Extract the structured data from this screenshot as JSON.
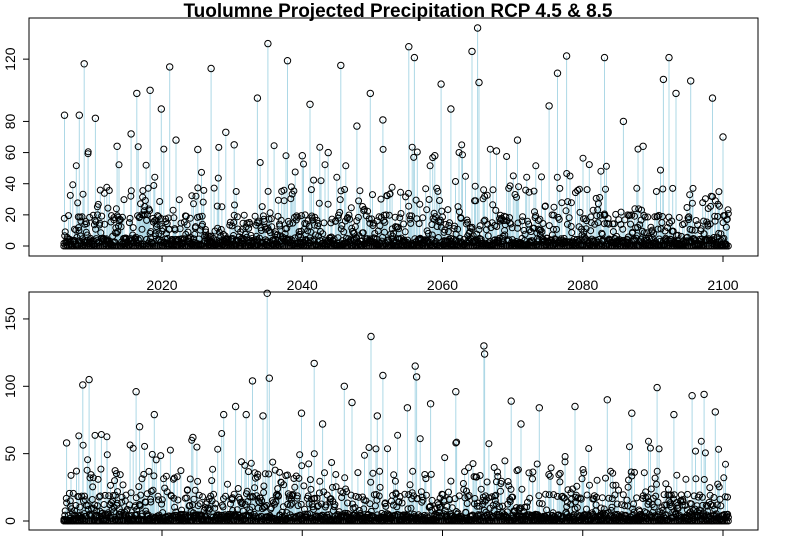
{
  "chart_data": [
    {
      "type": "scatter",
      "title": "Tuolumne Projected Precipitation RCP 4.5 & 8.5",
      "xlabel": "",
      "ylabel": "",
      "xlim": [
        2005,
        2101
      ],
      "ylim": [
        0,
        140
      ],
      "x_ticks": [
        2020,
        2040,
        2060,
        2080,
        2100
      ],
      "x_tick_labels": [
        "2020",
        "2040",
        "2060",
        "2080",
        "2100"
      ],
      "y_ticks": [
        0,
        20,
        40,
        60,
        80,
        120
      ],
      "y_tick_labels": [
        "0",
        "20",
        "40",
        "60",
        "80",
        "120"
      ],
      "stem_color": "#add8e6",
      "point_color": "#000000",
      "grid": false,
      "extremes": [
        {
          "x": 2006.1,
          "y": 84
        },
        {
          "x": 2008.2,
          "y": 84
        },
        {
          "x": 2008.9,
          "y": 117
        },
        {
          "x": 2010.5,
          "y": 82
        },
        {
          "x": 2013.6,
          "y": 64
        },
        {
          "x": 2015.6,
          "y": 72
        },
        {
          "x": 2016.4,
          "y": 98
        },
        {
          "x": 2018.3,
          "y": 100
        },
        {
          "x": 2019.9,
          "y": 88
        },
        {
          "x": 2021.1,
          "y": 115
        },
        {
          "x": 2022.0,
          "y": 68
        },
        {
          "x": 2025.1,
          "y": 62
        },
        {
          "x": 2027.0,
          "y": 114
        },
        {
          "x": 2029.1,
          "y": 73
        },
        {
          "x": 2030.3,
          "y": 65
        },
        {
          "x": 2033.6,
          "y": 95
        },
        {
          "x": 2035.1,
          "y": 130
        },
        {
          "x": 2037.9,
          "y": 119
        },
        {
          "x": 2040.0,
          "y": 58
        },
        {
          "x": 2041.1,
          "y": 91
        },
        {
          "x": 2043.7,
          "y": 60
        },
        {
          "x": 2045.5,
          "y": 116
        },
        {
          "x": 2047.8,
          "y": 77
        },
        {
          "x": 2049.7,
          "y": 98
        },
        {
          "x": 2051.5,
          "y": 81
        },
        {
          "x": 2055.2,
          "y": 128
        },
        {
          "x": 2056.0,
          "y": 121
        },
        {
          "x": 2058.9,
          "y": 58
        },
        {
          "x": 2059.8,
          "y": 104
        },
        {
          "x": 2061.2,
          "y": 88
        },
        {
          "x": 2064.2,
          "y": 125
        },
        {
          "x": 2065.0,
          "y": 140
        },
        {
          "x": 2065.2,
          "y": 105
        },
        {
          "x": 2067.7,
          "y": 61
        },
        {
          "x": 2070.7,
          "y": 68
        },
        {
          "x": 2075.2,
          "y": 90
        },
        {
          "x": 2076.4,
          "y": 111
        },
        {
          "x": 2077.7,
          "y": 122
        },
        {
          "x": 2083.1,
          "y": 121
        },
        {
          "x": 2085.8,
          "y": 80
        },
        {
          "x": 2088.6,
          "y": 64
        },
        {
          "x": 2091.5,
          "y": 107
        },
        {
          "x": 2092.3,
          "y": 121
        },
        {
          "x": 2093.3,
          "y": 98
        },
        {
          "x": 2095.4,
          "y": 106
        },
        {
          "x": 2098.5,
          "y": 95
        },
        {
          "x": 2100.0,
          "y": 70
        }
      ]
    },
    {
      "type": "scatter",
      "title": "",
      "xlabel": "",
      "ylabel": "",
      "xlim": [
        2005,
        2101
      ],
      "ylim": [
        0,
        170
      ],
      "x_ticks": [
        2020,
        2040,
        2060,
        2080,
        2100
      ],
      "x_tick_labels": [],
      "y_ticks": [
        0,
        50,
        100,
        150
      ],
      "y_tick_labels": [
        "0",
        "50",
        "100",
        "150"
      ],
      "stem_color": "#add8e6",
      "point_color": "#000000",
      "grid": false,
      "extremes": [
        {
          "x": 2006.4,
          "y": 58
        },
        {
          "x": 2008.7,
          "y": 101
        },
        {
          "x": 2009.6,
          "y": 105
        },
        {
          "x": 2016.3,
          "y": 96
        },
        {
          "x": 2016.8,
          "y": 70
        },
        {
          "x": 2018.9,
          "y": 79
        },
        {
          "x": 2024.4,
          "y": 62
        },
        {
          "x": 2028.8,
          "y": 79
        },
        {
          "x": 2030.5,
          "y": 85
        },
        {
          "x": 2032.0,
          "y": 79
        },
        {
          "x": 2032.9,
          "y": 104
        },
        {
          "x": 2034.4,
          "y": 78
        },
        {
          "x": 2035.0,
          "y": 169
        },
        {
          "x": 2035.3,
          "y": 106
        },
        {
          "x": 2039.9,
          "y": 80
        },
        {
          "x": 2041.7,
          "y": 117
        },
        {
          "x": 2042.9,
          "y": 72
        },
        {
          "x": 2046.0,
          "y": 100
        },
        {
          "x": 2047.1,
          "y": 88
        },
        {
          "x": 2049.8,
          "y": 137
        },
        {
          "x": 2050.7,
          "y": 78
        },
        {
          "x": 2051.5,
          "y": 108
        },
        {
          "x": 2055.0,
          "y": 84
        },
        {
          "x": 2056.1,
          "y": 115
        },
        {
          "x": 2056.3,
          "y": 107
        },
        {
          "x": 2058.3,
          "y": 87
        },
        {
          "x": 2061.9,
          "y": 96
        },
        {
          "x": 2065.9,
          "y": 130
        },
        {
          "x": 2066.0,
          "y": 124
        },
        {
          "x": 2069.8,
          "y": 89
        },
        {
          "x": 2071.2,
          "y": 72
        },
        {
          "x": 2073.8,
          "y": 84
        },
        {
          "x": 2078.9,
          "y": 85
        },
        {
          "x": 2083.5,
          "y": 90
        },
        {
          "x": 2087.0,
          "y": 80
        },
        {
          "x": 2090.6,
          "y": 99
        },
        {
          "x": 2093.0,
          "y": 79
        },
        {
          "x": 2095.6,
          "y": 93
        },
        {
          "x": 2097.3,
          "y": 94
        },
        {
          "x": 2098.9,
          "y": 81
        }
      ]
    }
  ]
}
